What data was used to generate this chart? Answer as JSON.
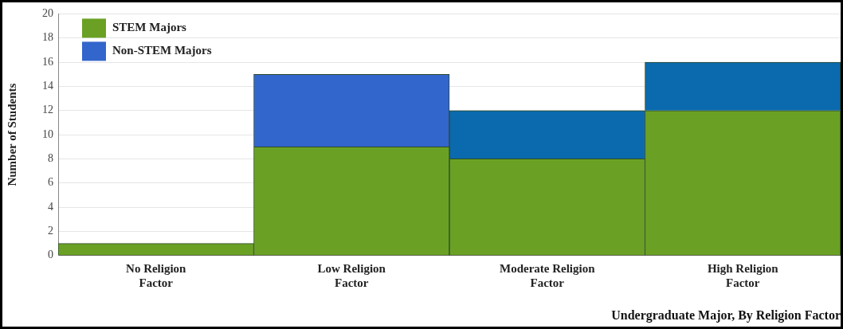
{
  "chart_data": {
    "type": "bar",
    "stacked": true,
    "xlabel": "Undergraduate Major, By Religion Factor",
    "ylabel": "Number of Students",
    "categories": [
      "No Religion Factor",
      "Low Religion Factor",
      "Moderate Religion Factor",
      "High Religion Factor"
    ],
    "series": [
      {
        "name": "STEM Majors",
        "color": "#6aa124",
        "values": [
          1,
          9,
          8,
          12
        ]
      },
      {
        "name": "Non-STEM Majors",
        "color": "#3366cc",
        "colors": [
          "#3366cc",
          "#3366cc",
          "#0a6aad",
          "#0a6aad"
        ],
        "values": [
          0,
          6,
          4,
          4
        ]
      }
    ],
    "ylim": [
      0,
      20
    ],
    "yticks": [
      0,
      2,
      4,
      6,
      8,
      10,
      12,
      14,
      16,
      18,
      20
    ],
    "grid": "y",
    "legend": "top left"
  }
}
